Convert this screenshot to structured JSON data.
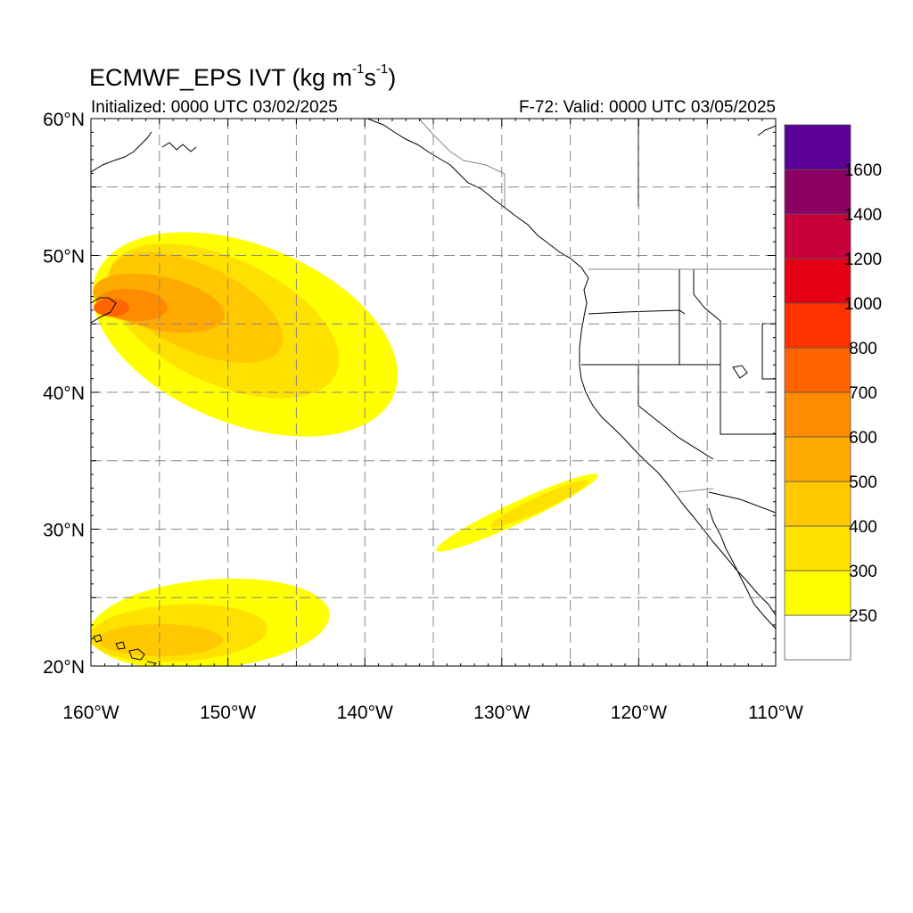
{
  "title": {
    "prefix": "ECMWF_EPS IVT (kg m",
    "sup1": "-1",
    "middle": "s",
    "sup2": "-1",
    "suffix": ")"
  },
  "subtitle_left": "Initialized: 0000 UTC 03/02/2025",
  "subtitle_right": "F-72: Valid: 0000 UTC 03/05/2025",
  "map": {
    "region": "Northeast Pacific / US West Coast",
    "lon_range": [
      -160,
      -110
    ],
    "lat_range": [
      20,
      60
    ],
    "lat_labels": [
      "20°N",
      "30°N",
      "40°N",
      "50°N",
      "60°N"
    ],
    "lon_labels": [
      "160°W",
      "150°W",
      "140°W",
      "130°W",
      "120°W",
      "110°W"
    ],
    "grid": "dashed gray every 5 degrees"
  },
  "colorbar": {
    "levels": [
      "250",
      "300",
      "400",
      "500",
      "600",
      "700",
      "800",
      "1000",
      "1200",
      "1400",
      "1600"
    ],
    "colors": [
      "#ffffff",
      "#ffff00",
      "#ffe100",
      "#ffc800",
      "#ffaa00",
      "#ff8c00",
      "#ff6400",
      "#ff3200",
      "#e60014",
      "#c8003c",
      "#8c0064",
      "#5a0096"
    ]
  },
  "ivt_features": [
    {
      "name": "atmospheric river core NE Pacific",
      "peak_level": "700"
    },
    {
      "name": "filament SW of California",
      "peak_level": "300"
    },
    {
      "name": "subtropical band near Hawaii",
      "peak_level": "400"
    }
  ]
}
